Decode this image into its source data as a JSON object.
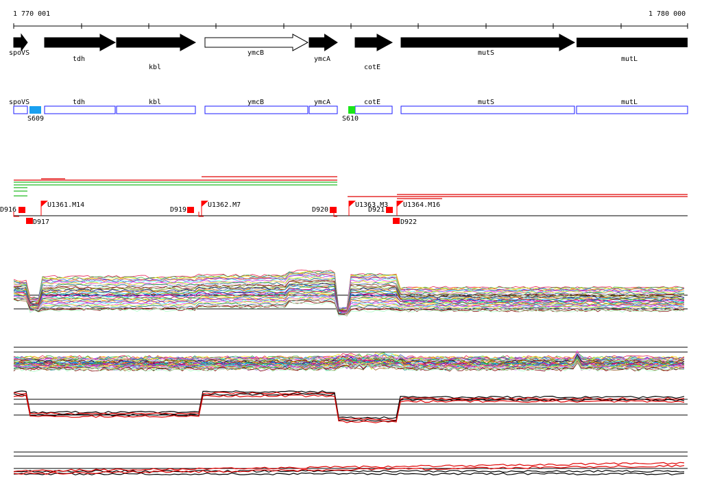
{
  "ruler": {
    "start_label": "1 770 001",
    "end_label": "1 780 000"
  },
  "genes": [
    {
      "name": "spoVS",
      "strand": "+",
      "filled": true
    },
    {
      "name": "tdh",
      "strand": "+",
      "filled": true
    },
    {
      "name": "kbl",
      "strand": "+",
      "filled": true
    },
    {
      "name": "ymcB",
      "strand": "+",
      "filled": false
    },
    {
      "name": "ymcA",
      "strand": "+",
      "filled": true
    },
    {
      "name": "cotE",
      "strand": "+",
      "filled": true
    },
    {
      "name": "mutS",
      "strand": "+",
      "filled": true
    },
    {
      "name": "mutL",
      "strand": "+",
      "filled": true
    }
  ],
  "gene_boxes": [
    {
      "name": "spoVS"
    },
    {
      "name": "tdh"
    },
    {
      "name": "kbl"
    },
    {
      "name": "ymcB"
    },
    {
      "name": "ymcA"
    },
    {
      "name": "cotE"
    },
    {
      "name": "mutS"
    },
    {
      "name": "mutL"
    }
  ],
  "sites": [
    {
      "name": "S609",
      "color": "#19a0f0"
    },
    {
      "name": "S610",
      "color": "#19e619"
    }
  ],
  "features": {
    "downstream_markers": [
      "D916",
      "D917",
      "D919",
      "D920",
      "D921",
      "D922"
    ],
    "upstream_flags": [
      "U1361.M14",
      "U1362.M7",
      "U1363.M3",
      "U1364.M16"
    ],
    "marker_color": "#ff0000"
  },
  "colors": {
    "gene_fill": "#000000",
    "box_stroke": "#1a1aff",
    "red": "#e00000",
    "green": "#22bb22"
  }
}
